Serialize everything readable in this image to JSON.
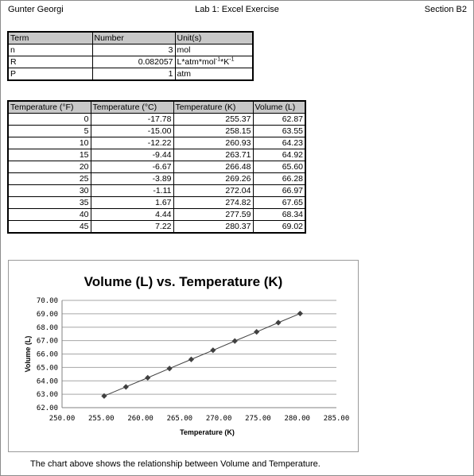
{
  "header": {
    "left": "Gunter Georgi",
    "center": "Lab 1: Excel Exercise",
    "right": "Section B2"
  },
  "constants_table": {
    "headers": [
      "Term",
      "Number",
      "Unit(s)"
    ],
    "rows": [
      {
        "term": "n",
        "number": "3",
        "unit_main": "mol",
        "unit_parts": []
      },
      {
        "term": "R",
        "number": "0.082057",
        "unit_main": "",
        "unit_parts": [
          "L*atm*mol",
          "-1",
          "*K",
          "-1"
        ]
      },
      {
        "term": "P",
        "number": "1",
        "unit_main": "atm",
        "unit_parts": []
      }
    ]
  },
  "temperature_table": {
    "headers": [
      "Temperature (°F)",
      "Temperature (°C)",
      "Temperature (K)",
      "Volume (L)"
    ],
    "rows": [
      [
        "0",
        "-17.78",
        "255.37",
        "62.87"
      ],
      [
        "5",
        "-15.00",
        "258.15",
        "63.55"
      ],
      [
        "10",
        "-12.22",
        "260.93",
        "64.23"
      ],
      [
        "15",
        "-9.44",
        "263.71",
        "64.92"
      ],
      [
        "20",
        "-6.67",
        "266.48",
        "65.60"
      ],
      [
        "25",
        "-3.89",
        "269.26",
        "66.28"
      ],
      [
        "30",
        "-1.11",
        "272.04",
        "66.97"
      ],
      [
        "35",
        "1.67",
        "274.82",
        "67.65"
      ],
      [
        "40",
        "4.44",
        "277.59",
        "68.34"
      ],
      [
        "45",
        "7.22",
        "280.37",
        "69.02"
      ]
    ]
  },
  "chart_data": {
    "type": "scatter",
    "title": "Volume (L) vs. Temperature (K)",
    "xlabel": "Temperature (K)",
    "ylabel": "Volume (L)",
    "xlim": [
      250,
      285
    ],
    "ylim": [
      62,
      70
    ],
    "x_ticks": [
      "250.00",
      "255.00",
      "260.00",
      "265.00",
      "270.00",
      "275.00",
      "280.00",
      "285.00"
    ],
    "y_ticks": [
      "62.00",
      "63.00",
      "64.00",
      "65.00",
      "66.00",
      "67.00",
      "68.00",
      "69.00",
      "70.00"
    ],
    "grid": "horizontal",
    "line": true,
    "marker": "diamond",
    "color": "#404040",
    "x": [
      255.37,
      258.15,
      260.93,
      263.71,
      266.48,
      269.26,
      272.04,
      274.82,
      277.59,
      280.37
    ],
    "y": [
      62.87,
      63.55,
      64.23,
      64.92,
      65.6,
      66.28,
      66.97,
      67.65,
      68.34,
      69.02
    ]
  },
  "caption": "The chart above shows the relationship between Volume and Temperature."
}
